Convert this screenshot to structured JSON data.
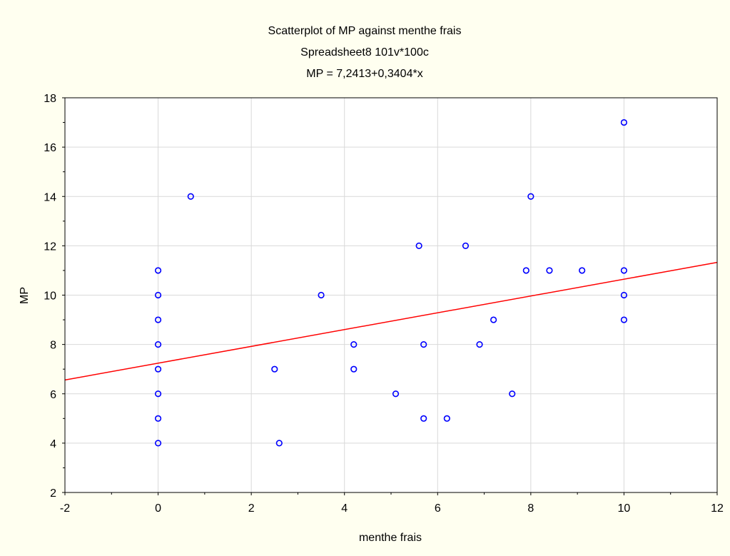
{
  "chart_data": {
    "type": "scatter",
    "title": [
      "Scatterplot of MP against menthe frais",
      "Spreadsheet8 101v*100c",
      "MP = 7,2413+0,3404*x"
    ],
    "xlabel": "menthe frais",
    "ylabel": "MP",
    "xlim": [
      -2,
      12
    ],
    "ylim": [
      2,
      18
    ],
    "xticks": [
      -2,
      0,
      2,
      4,
      6,
      8,
      10,
      12
    ],
    "yticks": [
      2,
      4,
      6,
      8,
      10,
      12,
      14,
      16,
      18
    ],
    "grid": true,
    "points": [
      {
        "x": 0,
        "y": 4
      },
      {
        "x": 0,
        "y": 5
      },
      {
        "x": 0,
        "y": 6
      },
      {
        "x": 0,
        "y": 7
      },
      {
        "x": 0,
        "y": 8
      },
      {
        "x": 0,
        "y": 9
      },
      {
        "x": 0,
        "y": 10
      },
      {
        "x": 0,
        "y": 11
      },
      {
        "x": 0.7,
        "y": 14
      },
      {
        "x": 2.5,
        "y": 7
      },
      {
        "x": 2.6,
        "y": 4
      },
      {
        "x": 3.5,
        "y": 10
      },
      {
        "x": 4.2,
        "y": 8
      },
      {
        "x": 4.2,
        "y": 7
      },
      {
        "x": 5.1,
        "y": 6
      },
      {
        "x": 5.6,
        "y": 12
      },
      {
        "x": 5.7,
        "y": 8
      },
      {
        "x": 5.7,
        "y": 5
      },
      {
        "x": 6.2,
        "y": 5
      },
      {
        "x": 6.6,
        "y": 12
      },
      {
        "x": 6.9,
        "y": 8
      },
      {
        "x": 7.2,
        "y": 9
      },
      {
        "x": 7.6,
        "y": 6
      },
      {
        "x": 7.9,
        "y": 11
      },
      {
        "x": 8.0,
        "y": 14
      },
      {
        "x": 8.4,
        "y": 11
      },
      {
        "x": 9.1,
        "y": 11
      },
      {
        "x": 10,
        "y": 17
      },
      {
        "x": 10,
        "y": 11
      },
      {
        "x": 10,
        "y": 10
      },
      {
        "x": 10,
        "y": 9
      }
    ],
    "regression": {
      "intercept": 7.2413,
      "slope": 0.3404
    },
    "colors": {
      "background": "#fffff0",
      "plot_background": "#ffffff",
      "grid": "#d9d9d9",
      "points": "#0000ff",
      "regression_line": "#ff0000",
      "axes": "#000000"
    }
  }
}
